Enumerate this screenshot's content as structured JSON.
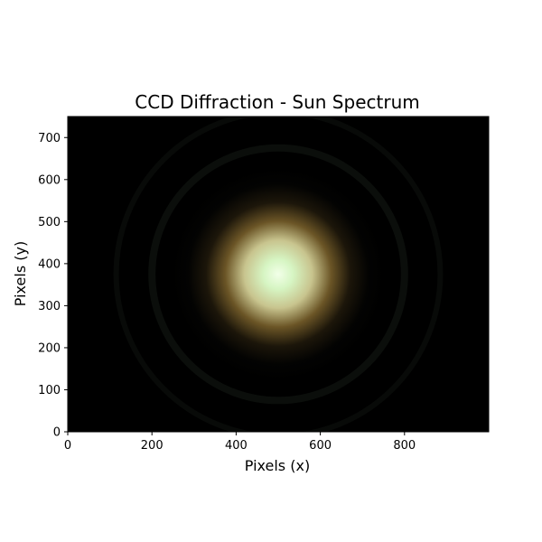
{
  "chart_data": {
    "type": "heatmap",
    "title": "CCD Diffraction - Sun Spectrum",
    "xlabel": "Pixels (x)",
    "ylabel": "Pixels (y)",
    "xlim": [
      0,
      1000
    ],
    "ylim": [
      0,
      750
    ],
    "xticks": [
      0,
      200,
      400,
      600,
      800
    ],
    "yticks": [
      0,
      100,
      200,
      300,
      400,
      500,
      600,
      700
    ],
    "grid": false,
    "background": "#000000",
    "image": {
      "description_kind": "airy-diffraction-pattern",
      "center": [
        500,
        375
      ],
      "core_radius": 120,
      "ring_radii": [
        215,
        300,
        385
      ],
      "core_color": "#e6ffd9",
      "halo_color": "#9a7a3a",
      "ring_color": "#2a3528"
    }
  }
}
